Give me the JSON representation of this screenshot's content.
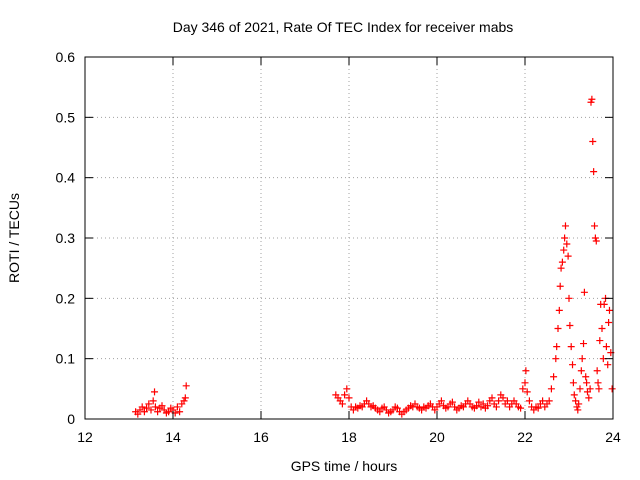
{
  "chart_data": {
    "type": "scatter",
    "title": "Day 346 of 2021, Rate Of TEC Index for receiver mabs",
    "xlabel": "GPS time / hours",
    "ylabel": "ROTI / TECUs",
    "xlim": [
      12,
      24
    ],
    "ylim": [
      0,
      0.6
    ],
    "xticks": [
      12,
      14,
      16,
      18,
      20,
      22,
      24
    ],
    "yticks": [
      0,
      0.1,
      0.2,
      0.3,
      0.4,
      0.5,
      0.6
    ],
    "xtick_labels": [
      "12",
      "14",
      "16",
      "18",
      "20",
      "22",
      "24"
    ],
    "ytick_labels": [
      "0",
      "0.1",
      "0.2",
      "0.3",
      "0.4",
      "0.5",
      "0.6"
    ],
    "grid": true,
    "marker": "+",
    "marker_color": "#ff0000",
    "series": [
      {
        "name": "ROTI",
        "points": [
          [
            13.15,
            0.012
          ],
          [
            13.2,
            0.008
          ],
          [
            13.25,
            0.015
          ],
          [
            13.3,
            0.02
          ],
          [
            13.35,
            0.012
          ],
          [
            13.4,
            0.018
          ],
          [
            13.45,
            0.025
          ],
          [
            13.5,
            0.015
          ],
          [
            13.55,
            0.03
          ],
          [
            13.58,
            0.045
          ],
          [
            13.6,
            0.02
          ],
          [
            13.65,
            0.012
          ],
          [
            13.7,
            0.018
          ],
          [
            13.75,
            0.022
          ],
          [
            13.8,
            0.015
          ],
          [
            13.85,
            0.01
          ],
          [
            13.9,
            0.012
          ],
          [
            13.95,
            0.018
          ],
          [
            14.0,
            0.015
          ],
          [
            14.05,
            0.01
          ],
          [
            14.1,
            0.02
          ],
          [
            14.15,
            0.012
          ],
          [
            14.2,
            0.025
          ],
          [
            14.25,
            0.03
          ],
          [
            14.28,
            0.035
          ],
          [
            14.3,
            0.055
          ],
          [
            17.7,
            0.04
          ],
          [
            17.75,
            0.035
          ],
          [
            17.8,
            0.03
          ],
          [
            17.85,
            0.025
          ],
          [
            17.9,
            0.04
          ],
          [
            17.95,
            0.05
          ],
          [
            18.0,
            0.035
          ],
          [
            18.05,
            0.02
          ],
          [
            18.1,
            0.015
          ],
          [
            18.15,
            0.02
          ],
          [
            18.2,
            0.018
          ],
          [
            18.25,
            0.022
          ],
          [
            18.3,
            0.02
          ],
          [
            18.35,
            0.025
          ],
          [
            18.4,
            0.03
          ],
          [
            18.45,
            0.025
          ],
          [
            18.5,
            0.02
          ],
          [
            18.55,
            0.022
          ],
          [
            18.6,
            0.018
          ],
          [
            18.65,
            0.015
          ],
          [
            18.7,
            0.012
          ],
          [
            18.75,
            0.018
          ],
          [
            18.8,
            0.02
          ],
          [
            18.85,
            0.015
          ],
          [
            18.9,
            0.01
          ],
          [
            18.95,
            0.012
          ],
          [
            19.0,
            0.015
          ],
          [
            19.05,
            0.02
          ],
          [
            19.1,
            0.018
          ],
          [
            19.15,
            0.012
          ],
          [
            19.2,
            0.008
          ],
          [
            19.25,
            0.012
          ],
          [
            19.3,
            0.015
          ],
          [
            19.35,
            0.018
          ],
          [
            19.4,
            0.022
          ],
          [
            19.45,
            0.02
          ],
          [
            19.5,
            0.025
          ],
          [
            19.55,
            0.02
          ],
          [
            19.6,
            0.018
          ],
          [
            19.65,
            0.015
          ],
          [
            19.7,
            0.02
          ],
          [
            19.75,
            0.018
          ],
          [
            19.8,
            0.022
          ],
          [
            19.85,
            0.025
          ],
          [
            19.9,
            0.02
          ],
          [
            19.95,
            0.015
          ],
          [
            20.0,
            0.02
          ],
          [
            20.05,
            0.025
          ],
          [
            20.1,
            0.03
          ],
          [
            20.15,
            0.022
          ],
          [
            20.2,
            0.018
          ],
          [
            20.25,
            0.02
          ],
          [
            20.3,
            0.025
          ],
          [
            20.35,
            0.028
          ],
          [
            20.4,
            0.02
          ],
          [
            20.45,
            0.015
          ],
          [
            20.5,
            0.018
          ],
          [
            20.55,
            0.022
          ],
          [
            20.6,
            0.02
          ],
          [
            20.65,
            0.025
          ],
          [
            20.7,
            0.03
          ],
          [
            20.75,
            0.025
          ],
          [
            20.8,
            0.02
          ],
          [
            20.85,
            0.018
          ],
          [
            20.9,
            0.022
          ],
          [
            20.95,
            0.028
          ],
          [
            21.0,
            0.02
          ],
          [
            21.05,
            0.025
          ],
          [
            21.1,
            0.018
          ],
          [
            21.15,
            0.022
          ],
          [
            21.2,
            0.03
          ],
          [
            21.25,
            0.035
          ],
          [
            21.3,
            0.025
          ],
          [
            21.35,
            0.02
          ],
          [
            21.4,
            0.03
          ],
          [
            21.45,
            0.04
          ],
          [
            21.5,
            0.035
          ],
          [
            21.55,
            0.025
          ],
          [
            21.6,
            0.03
          ],
          [
            21.65,
            0.02
          ],
          [
            21.7,
            0.025
          ],
          [
            21.75,
            0.03
          ],
          [
            21.8,
            0.025
          ],
          [
            21.85,
            0.02
          ],
          [
            21.9,
            0.018
          ],
          [
            21.95,
            0.05
          ],
          [
            22.0,
            0.06
          ],
          [
            22.02,
            0.08
          ],
          [
            22.05,
            0.045
          ],
          [
            22.1,
            0.03
          ],
          [
            22.15,
            0.02
          ],
          [
            22.2,
            0.015
          ],
          [
            22.25,
            0.02
          ],
          [
            22.3,
            0.018
          ],
          [
            22.35,
            0.025
          ],
          [
            22.4,
            0.03
          ],
          [
            22.45,
            0.02
          ],
          [
            22.5,
            0.025
          ],
          [
            22.55,
            0.03
          ],
          [
            22.6,
            0.05
          ],
          [
            22.65,
            0.07
          ],
          [
            22.7,
            0.1
          ],
          [
            22.72,
            0.12
          ],
          [
            22.75,
            0.15
          ],
          [
            22.78,
            0.18
          ],
          [
            22.8,
            0.22
          ],
          [
            22.82,
            0.25
          ],
          [
            22.85,
            0.26
          ],
          [
            22.88,
            0.28
          ],
          [
            22.9,
            0.3
          ],
          [
            22.92,
            0.32
          ],
          [
            22.95,
            0.29
          ],
          [
            22.98,
            0.27
          ],
          [
            23.0,
            0.2
          ],
          [
            23.02,
            0.155
          ],
          [
            23.05,
            0.12
          ],
          [
            23.08,
            0.09
          ],
          [
            23.1,
            0.06
          ],
          [
            23.12,
            0.04
          ],
          [
            23.15,
            0.03
          ],
          [
            23.18,
            0.02
          ],
          [
            23.2,
            0.015
          ],
          [
            23.22,
            0.025
          ],
          [
            23.25,
            0.05
          ],
          [
            23.28,
            0.08
          ],
          [
            23.3,
            0.1
          ],
          [
            23.33,
            0.125
          ],
          [
            23.35,
            0.21
          ],
          [
            23.38,
            0.07
          ],
          [
            23.4,
            0.06
          ],
          [
            23.42,
            0.045
          ],
          [
            23.45,
            0.035
          ],
          [
            23.48,
            0.05
          ],
          [
            23.5,
            0.525
          ],
          [
            23.52,
            0.53
          ],
          [
            23.54,
            0.46
          ],
          [
            23.56,
            0.41
          ],
          [
            23.58,
            0.32
          ],
          [
            23.6,
            0.3
          ],
          [
            23.62,
            0.295
          ],
          [
            23.64,
            0.08
          ],
          [
            23.66,
            0.06
          ],
          [
            23.68,
            0.05
          ],
          [
            23.7,
            0.13
          ],
          [
            23.72,
            0.19
          ],
          [
            23.75,
            0.15
          ],
          [
            23.78,
            0.1
          ],
          [
            23.8,
            0.19
          ],
          [
            23.83,
            0.2
          ],
          [
            23.85,
            0.12
          ],
          [
            23.88,
            0.09
          ],
          [
            23.9,
            0.16
          ],
          [
            23.92,
            0.18
          ],
          [
            23.95,
            0.11
          ],
          [
            23.98,
            0.05
          ]
        ]
      }
    ]
  }
}
